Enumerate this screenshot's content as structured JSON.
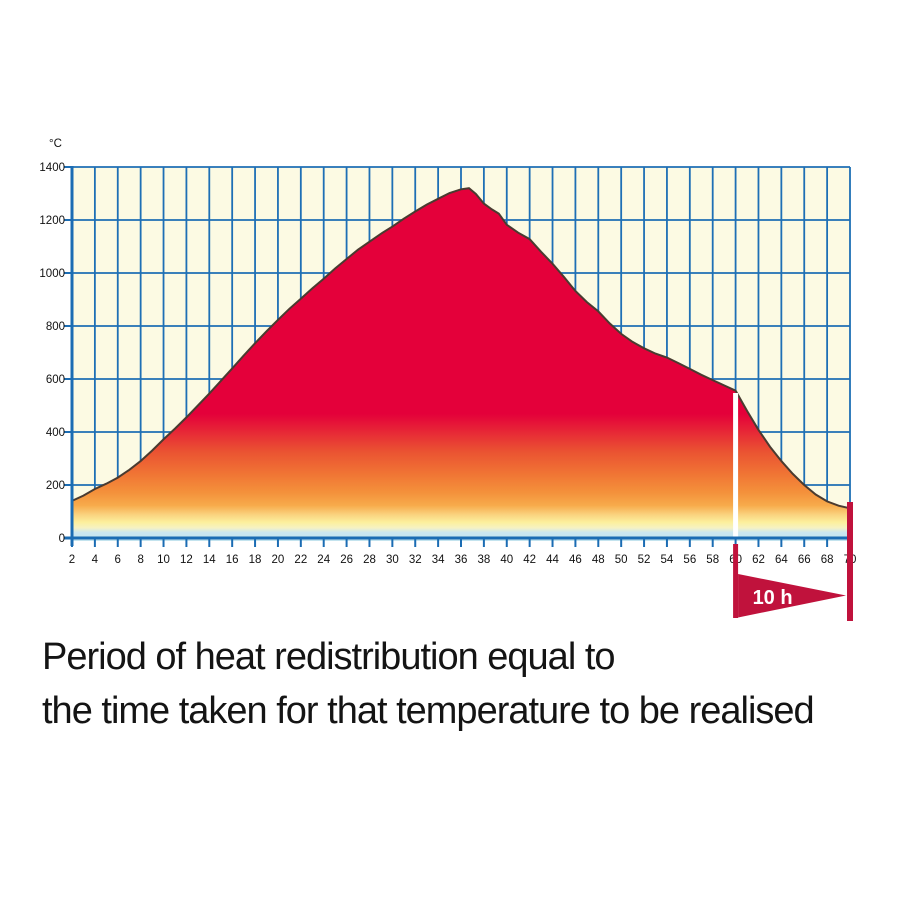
{
  "figure": {
    "caption": {
      "line1": "Period of heat redistribution equal to",
      "line2": "the time taken for that temperature to be realised"
    }
  },
  "chart_data": {
    "type": "area",
    "title": "",
    "xlabel": "",
    "ylabel": "°C",
    "xlim": [
      2,
      70
    ],
    "ylim": [
      0,
      1400
    ],
    "grid": true,
    "legend": "none",
    "x_ticks": [
      2,
      4,
      6,
      8,
      10,
      12,
      14,
      16,
      18,
      20,
      22,
      24,
      26,
      28,
      30,
      32,
      34,
      36,
      38,
      40,
      42,
      44,
      46,
      48,
      50,
      52,
      54,
      56,
      58,
      60,
      62,
      64,
      66,
      68,
      70
    ],
    "y_ticks": [
      0,
      200,
      400,
      600,
      800,
      1000,
      1200,
      1400
    ],
    "curve_points": [
      [
        2,
        140
      ],
      [
        3,
        160
      ],
      [
        4,
        185
      ],
      [
        5,
        205
      ],
      [
        6,
        228
      ],
      [
        7,
        257
      ],
      [
        8,
        290
      ],
      [
        9,
        330
      ],
      [
        10,
        372
      ],
      [
        11,
        413
      ],
      [
        12,
        455
      ],
      [
        13,
        500
      ],
      [
        14,
        545
      ],
      [
        15,
        592
      ],
      [
        16,
        640
      ],
      [
        17,
        688
      ],
      [
        18,
        735
      ],
      [
        19,
        780
      ],
      [
        20,
        823
      ],
      [
        21,
        865
      ],
      [
        22,
        903
      ],
      [
        23,
        942
      ],
      [
        24,
        978
      ],
      [
        25,
        1017
      ],
      [
        26,
        1053
      ],
      [
        27,
        1088
      ],
      [
        28,
        1118
      ],
      [
        29,
        1148
      ],
      [
        30,
        1175
      ],
      [
        31,
        1205
      ],
      [
        32,
        1232
      ],
      [
        33,
        1258
      ],
      [
        34,
        1280
      ],
      [
        35,
        1302
      ],
      [
        36,
        1316
      ],
      [
        36.7,
        1320
      ],
      [
        37.3,
        1298
      ],
      [
        38,
        1262
      ],
      [
        38.7,
        1240
      ],
      [
        39.3,
        1224
      ],
      [
        40,
        1182
      ],
      [
        41,
        1152
      ],
      [
        42,
        1128
      ],
      [
        43,
        1080
      ],
      [
        44,
        1035
      ],
      [
        45,
        985
      ],
      [
        46,
        932
      ],
      [
        47,
        890
      ],
      [
        48,
        855
      ],
      [
        49,
        810
      ],
      [
        50,
        770
      ],
      [
        51,
        740
      ],
      [
        52,
        716
      ],
      [
        53,
        696
      ],
      [
        54,
        681
      ],
      [
        55,
        660
      ],
      [
        56,
        638
      ],
      [
        57,
        616
      ],
      [
        58,
        596
      ],
      [
        59,
        576
      ],
      [
        60,
        556
      ],
      [
        61,
        480
      ],
      [
        62,
        408
      ],
      [
        63,
        345
      ],
      [
        64,
        290
      ],
      [
        65,
        242
      ],
      [
        66,
        200
      ],
      [
        67,
        164
      ],
      [
        68,
        138
      ],
      [
        69,
        122
      ],
      [
        70,
        112
      ]
    ],
    "annotation": {
      "marker_line_x": 60,
      "span_start_x": 60,
      "span_end_x": 70,
      "label": "10 h"
    },
    "colors": {
      "plot_bg": "#FCFAE3",
      "grid_blue": "#1E6FB5",
      "axis_blue": "#1B6CB3",
      "area_red": "#E4003A",
      "curve_outline": "#4A3B30",
      "marker_white": "#FFFFFF",
      "marker_red": "#C0123C",
      "band_light_blue": "#C3E3EE"
    },
    "gradient_stops": [
      [
        0.0,
        "#E4003A"
      ],
      [
        0.66,
        "#E4003A"
      ],
      [
        0.76,
        "#EA5232"
      ],
      [
        0.82,
        "#F07434"
      ],
      [
        0.87,
        "#F4913B"
      ],
      [
        0.905,
        "#F7AB4B"
      ],
      [
        0.93,
        "#FAD380"
      ],
      [
        0.95,
        "#FCF09D"
      ],
      [
        0.965,
        "#F6F2C3"
      ],
      [
        0.977,
        "#CBE7F0"
      ],
      [
        1.0,
        "#C3E3EE"
      ]
    ]
  }
}
